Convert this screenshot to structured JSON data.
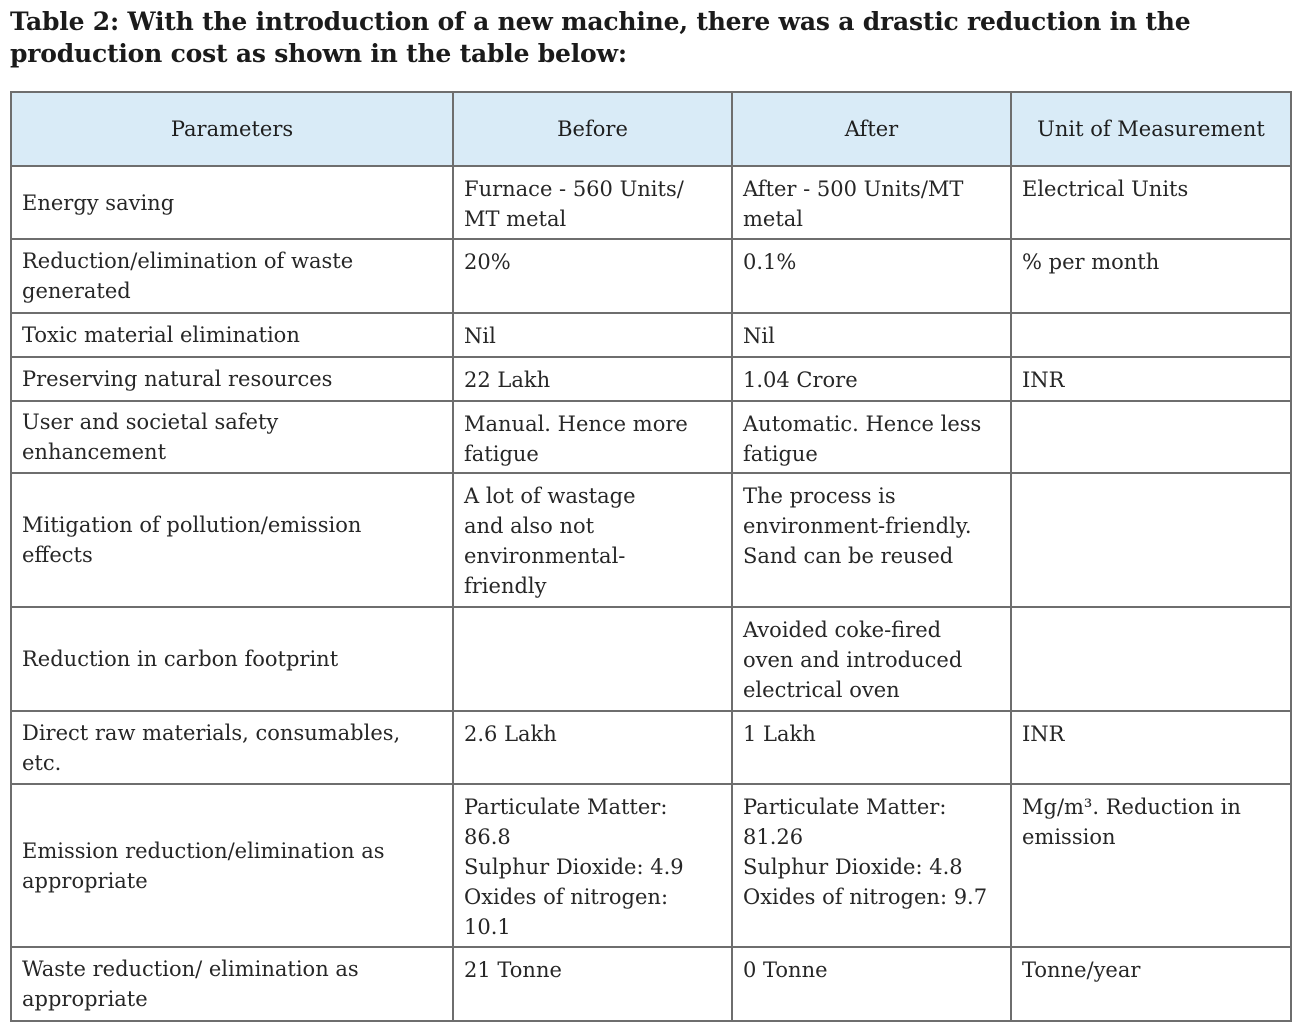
{
  "caption": {
    "line1": "Table 2: With the introduction of a new machine, there was a drastic reduction in the",
    "line2": "production cost as shown in the table below:"
  },
  "table": {
    "headers": {
      "parameters": "Parameters",
      "before": "Before",
      "after": "After",
      "unit": "Unit of Measurement"
    },
    "rows": [
      {
        "parameter": [
          "Energy saving"
        ],
        "before": [
          "Furnace - 560 Units/",
          "MT metal"
        ],
        "after": [
          "After - 500 Units/MT",
          "metal"
        ],
        "unit": [
          "Electrical Units"
        ]
      },
      {
        "parameter": [
          "Reduction/elimination of waste",
          "generated"
        ],
        "before": [
          " 20%"
        ],
        "after": [
          "0.1%"
        ],
        "unit": [
          "% per month"
        ]
      },
      {
        "parameter": [
          "Toxic material elimination"
        ],
        "before": [
          "Nil"
        ],
        "after": [
          "Nil"
        ],
        "unit": []
      },
      {
        "parameter": [
          "Preserving natural resources"
        ],
        "before": [
          "22 Lakh"
        ],
        "after": [
          "1.04 Crore"
        ],
        "unit": [
          "INR"
        ]
      },
      {
        "parameter": [
          "User and societal safety",
          "enhancement"
        ],
        "before": [
          "Manual. Hence more",
          "fatigue"
        ],
        "after": [
          "Automatic. Hence less",
          "fatigue"
        ],
        "unit": []
      },
      {
        "parameter": [
          "Mitigation of pollution/emission",
          "effects"
        ],
        "before": [
          "A lot of wastage",
          "and also not",
          "environmental-",
          "friendly"
        ],
        "after": [
          "The process is",
          "environment-friendly.",
          "Sand can be reused"
        ],
        "unit": []
      },
      {
        "parameter": [
          "Reduction in carbon footprint"
        ],
        "before": [],
        "after": [
          "Avoided coke-fired",
          "oven and introduced",
          "electrical oven"
        ],
        "unit": []
      },
      {
        "parameter": [
          "Direct raw materials, consumables,",
          "etc."
        ],
        "before": [
          "2.6 Lakh"
        ],
        "after": [
          "1 Lakh"
        ],
        "unit": [
          "INR"
        ]
      },
      {
        "parameter": [
          "Emission reduction/elimination as",
          "appropriate"
        ],
        "before": [
          "Particulate Matter:",
          "86.8",
          "Sulphur Dioxide: 4.9",
          "Oxides of nitrogen:",
          "10.1"
        ],
        "after": [
          "Particulate Matter:",
          "81.26",
          "Sulphur Dioxide: 4.8",
          "Oxides of nitrogen: 9.7"
        ],
        "unit": [
          "Mg/m³. Reduction in",
          "emission"
        ]
      },
      {
        "parameter": [
          "Waste reduction/ elimination as",
          "appropriate"
        ],
        "before": [
          "21 Tonne"
        ],
        "after": [
          "0 Tonne"
        ],
        "unit": [
          "Tonne/year"
        ]
      }
    ]
  }
}
